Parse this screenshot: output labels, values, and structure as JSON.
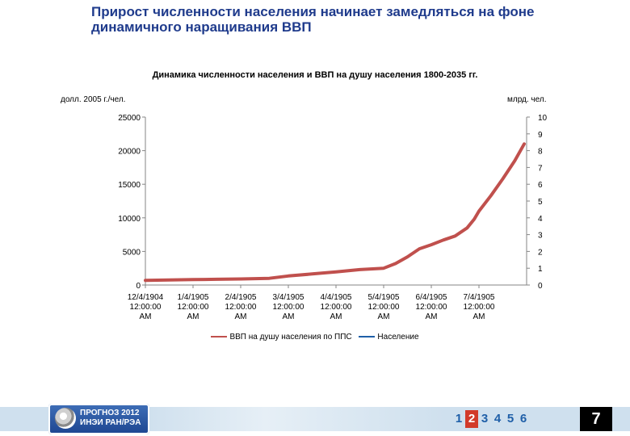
{
  "slide": {
    "title_line1": "Прирост численности населения начинает замедляться на фоне",
    "title_line2": "динамичного наращивания ВВП"
  },
  "chart_data": {
    "type": "line",
    "title": "Динамика численности населения и ВВП на душу населения 1800-2035 гг.",
    "ylabel_left": "долл. 2005 г./чел.",
    "ylabel_right": "млрд. чел.",
    "y_left_range": [
      0,
      25000
    ],
    "y_left_ticks": [
      "0",
      "5000",
      "10000",
      "15000",
      "20000",
      "25000"
    ],
    "y_right_range": [
      0,
      10
    ],
    "y_right_ticks": [
      "0",
      "1",
      "2",
      "3",
      "4",
      "5",
      "6",
      "7",
      "8",
      "9",
      "10"
    ],
    "x_range": [
      0,
      8
    ],
    "x_ticks": [
      {
        "value": 0,
        "lines": [
          "12/4/1904",
          "12:00:00",
          "AM"
        ]
      },
      {
        "value": 1,
        "lines": [
          "1/4/1905",
          "12:00:00",
          "AM"
        ]
      },
      {
        "value": 2,
        "lines": [
          "2/4/1905",
          "12:00:00",
          "AM"
        ]
      },
      {
        "value": 3,
        "lines": [
          "3/4/1905",
          "12:00:00",
          "AM"
        ]
      },
      {
        "value": 4,
        "lines": [
          "4/4/1905",
          "12:00:00",
          "AM"
        ]
      },
      {
        "value": 5,
        "lines": [
          "5/4/1905",
          "12:00:00",
          "AM"
        ]
      },
      {
        "value": 6,
        "lines": [
          "6/4/1905",
          "12:00:00",
          "AM"
        ]
      },
      {
        "value": 7,
        "lines": [
          "7/4/1905",
          "12:00:00",
          "AM"
        ]
      }
    ],
    "grid": false,
    "legend_position": "bottom",
    "series": [
      {
        "name": "ВВП на душу населения по ППС",
        "color": "#c0504d",
        "axis": "left",
        "points": [
          [
            0,
            700
          ],
          [
            0.5,
            760
          ],
          [
            1,
            800
          ],
          [
            1.5,
            850
          ],
          [
            2,
            900
          ],
          [
            2.3,
            950
          ],
          [
            2.6,
            1000
          ],
          [
            3,
            1350
          ],
          [
            3.5,
            1650
          ],
          [
            4,
            1950
          ],
          [
            4.5,
            2300
          ],
          [
            5,
            2500
          ],
          [
            5.25,
            3200
          ],
          [
            5.5,
            4200
          ],
          [
            5.75,
            5400
          ],
          [
            6,
            6000
          ],
          [
            6.25,
            6700
          ],
          [
            6.5,
            7300
          ],
          [
            6.75,
            8500
          ],
          [
            6.9,
            9800
          ],
          [
            7,
            11000
          ],
          [
            7.25,
            13300
          ],
          [
            7.5,
            15800
          ],
          [
            7.75,
            18500
          ],
          [
            7.95,
            21000
          ]
        ]
      },
      {
        "name": "Население",
        "color": "#1f5fa8",
        "axis": "right",
        "points": []
      }
    ]
  },
  "footer": {
    "logo_line1": "ПРОГНОЗ 2012",
    "logo_line2": "ИНЭИ РАН/РЭА",
    "pages": [
      "1",
      "2",
      "3",
      "4",
      "5",
      "6"
    ],
    "active_page": "2",
    "slide_number": "7"
  }
}
